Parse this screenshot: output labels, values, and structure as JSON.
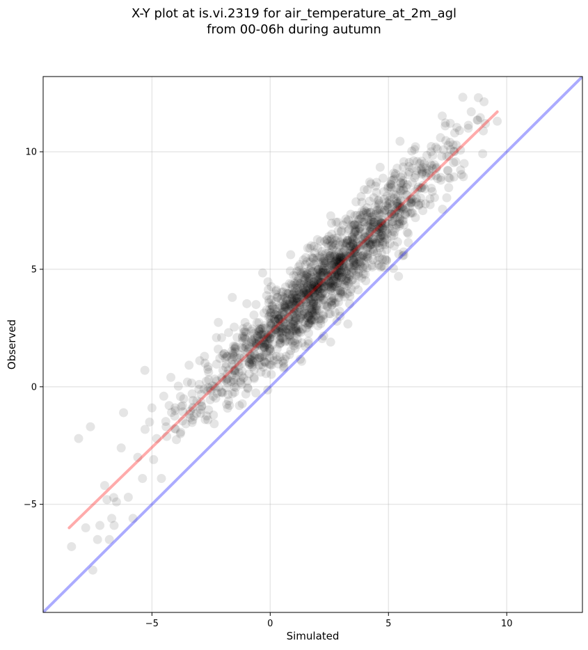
{
  "chart_data": {
    "type": "scatter",
    "title": "X-Y plot at is.vi.2319 for air_temperature_at_2m_agl\nfrom 00-06h during autumn",
    "xlabel": "Simulated",
    "ylabel": "Observed",
    "xlim": [
      -9.6,
      13.2
    ],
    "ylim": [
      -9.6,
      13.2
    ],
    "x_ticks": [
      -5,
      0,
      5,
      10
    ],
    "x_tick_labels": [
      "−5",
      "0",
      "5",
      "10"
    ],
    "y_ticks": [
      -5,
      0,
      5,
      10
    ],
    "y_tick_labels": [
      "−5",
      "0",
      "5",
      "10"
    ],
    "grid": true,
    "legend": "none",
    "point_count": 1500,
    "point_color": "#000000",
    "point_alpha": 0.1,
    "series": [
      {
        "x": [
          -8.4,
          -8.1,
          -7.8,
          -7.6,
          -7.5,
          -7.3,
          -7.2,
          -7.0,
          -6.9,
          -6.8,
          -6.7,
          -6.6,
          -6.5,
          -6.3,
          -6.2,
          -6.0,
          -5.8,
          -5.6,
          -5.4,
          -5.3,
          -5.1,
          -5.0,
          -4.8,
          -4.6,
          -4.5,
          -4.4,
          -4.2,
          -4.0,
          -3.8,
          -3.7,
          -3.5,
          -3.3,
          -3.1,
          -3.0,
          -2.8,
          -2.6,
          -2.4,
          -2.2,
          -2.0,
          -1.8,
          -1.6,
          -1.4,
          -1.2,
          -1.0,
          -0.8,
          -0.6,
          -0.4,
          -0.2,
          0.0,
          0.2,
          0.4,
          0.6,
          0.8,
          1.0,
          1.2,
          1.4,
          1.6,
          1.8,
          2.0,
          2.2,
          2.4,
          2.6,
          2.8,
          3.0,
          3.2,
          3.4,
          3.6,
          3.8,
          4.0,
          4.2,
          4.4,
          4.6,
          4.8,
          5.0,
          5.2,
          5.4,
          5.6,
          5.8,
          6.0,
          6.2,
          6.4,
          6.6,
          6.8,
          7.0,
          7.2,
          7.4,
          7.6,
          7.8,
          8.0,
          8.2,
          8.5,
          8.8,
          9.1,
          9.6
        ],
        "y": [
          -6.8,
          -2.2,
          -6.0,
          -1.7,
          -7.8,
          -6.5,
          -5.9,
          -4.2,
          -4.8,
          -6.5,
          -5.6,
          -5.9,
          -4.9,
          -2.6,
          -1.1,
          -4.7,
          -5.6,
          -3.0,
          -3.9,
          0.7,
          -1.5,
          -0.9,
          -2.2,
          -3.9,
          -0.4,
          -1.7,
          0.4,
          -1.8,
          -2.0,
          -0.8,
          0.2,
          -0.3,
          -0.6,
          0.1,
          -0.1,
          0.3,
          -1.2,
          1.6,
          0.7,
          1.3,
          0.5,
          2.1,
          1.0,
          1.8,
          2.0,
          3.5,
          2.2,
          2.5,
          2.9,
          3.3,
          2.0,
          3.8,
          2.3,
          4.0,
          4.6,
          5.4,
          4.3,
          4.9,
          5.5,
          5.1,
          6.1,
          4.7,
          5.8,
          6.6,
          5.6,
          6.0,
          6.9,
          7.3,
          6.4,
          7.9,
          7.0,
          7.8,
          8.3,
          7.6,
          8.8,
          8.1,
          9.0,
          8.6,
          9.3,
          9.2,
          9.6,
          9.1,
          10.0,
          10.2,
          10.6,
          11.1,
          10.4,
          10.8,
          10.9,
          9.5,
          11.7,
          12.3,
          11.2,
          11.3
        ]
      }
    ],
    "lines": [
      {
        "name": "fit",
        "color": "#ff0000",
        "x": [
          -8.5,
          9.6
        ],
        "y": [
          -6.0,
          11.7
        ]
      },
      {
        "name": "1:1",
        "color": "#0000ff",
        "x": [
          -9.6,
          13.2
        ],
        "y": [
          -9.6,
          13.2
        ]
      }
    ]
  }
}
